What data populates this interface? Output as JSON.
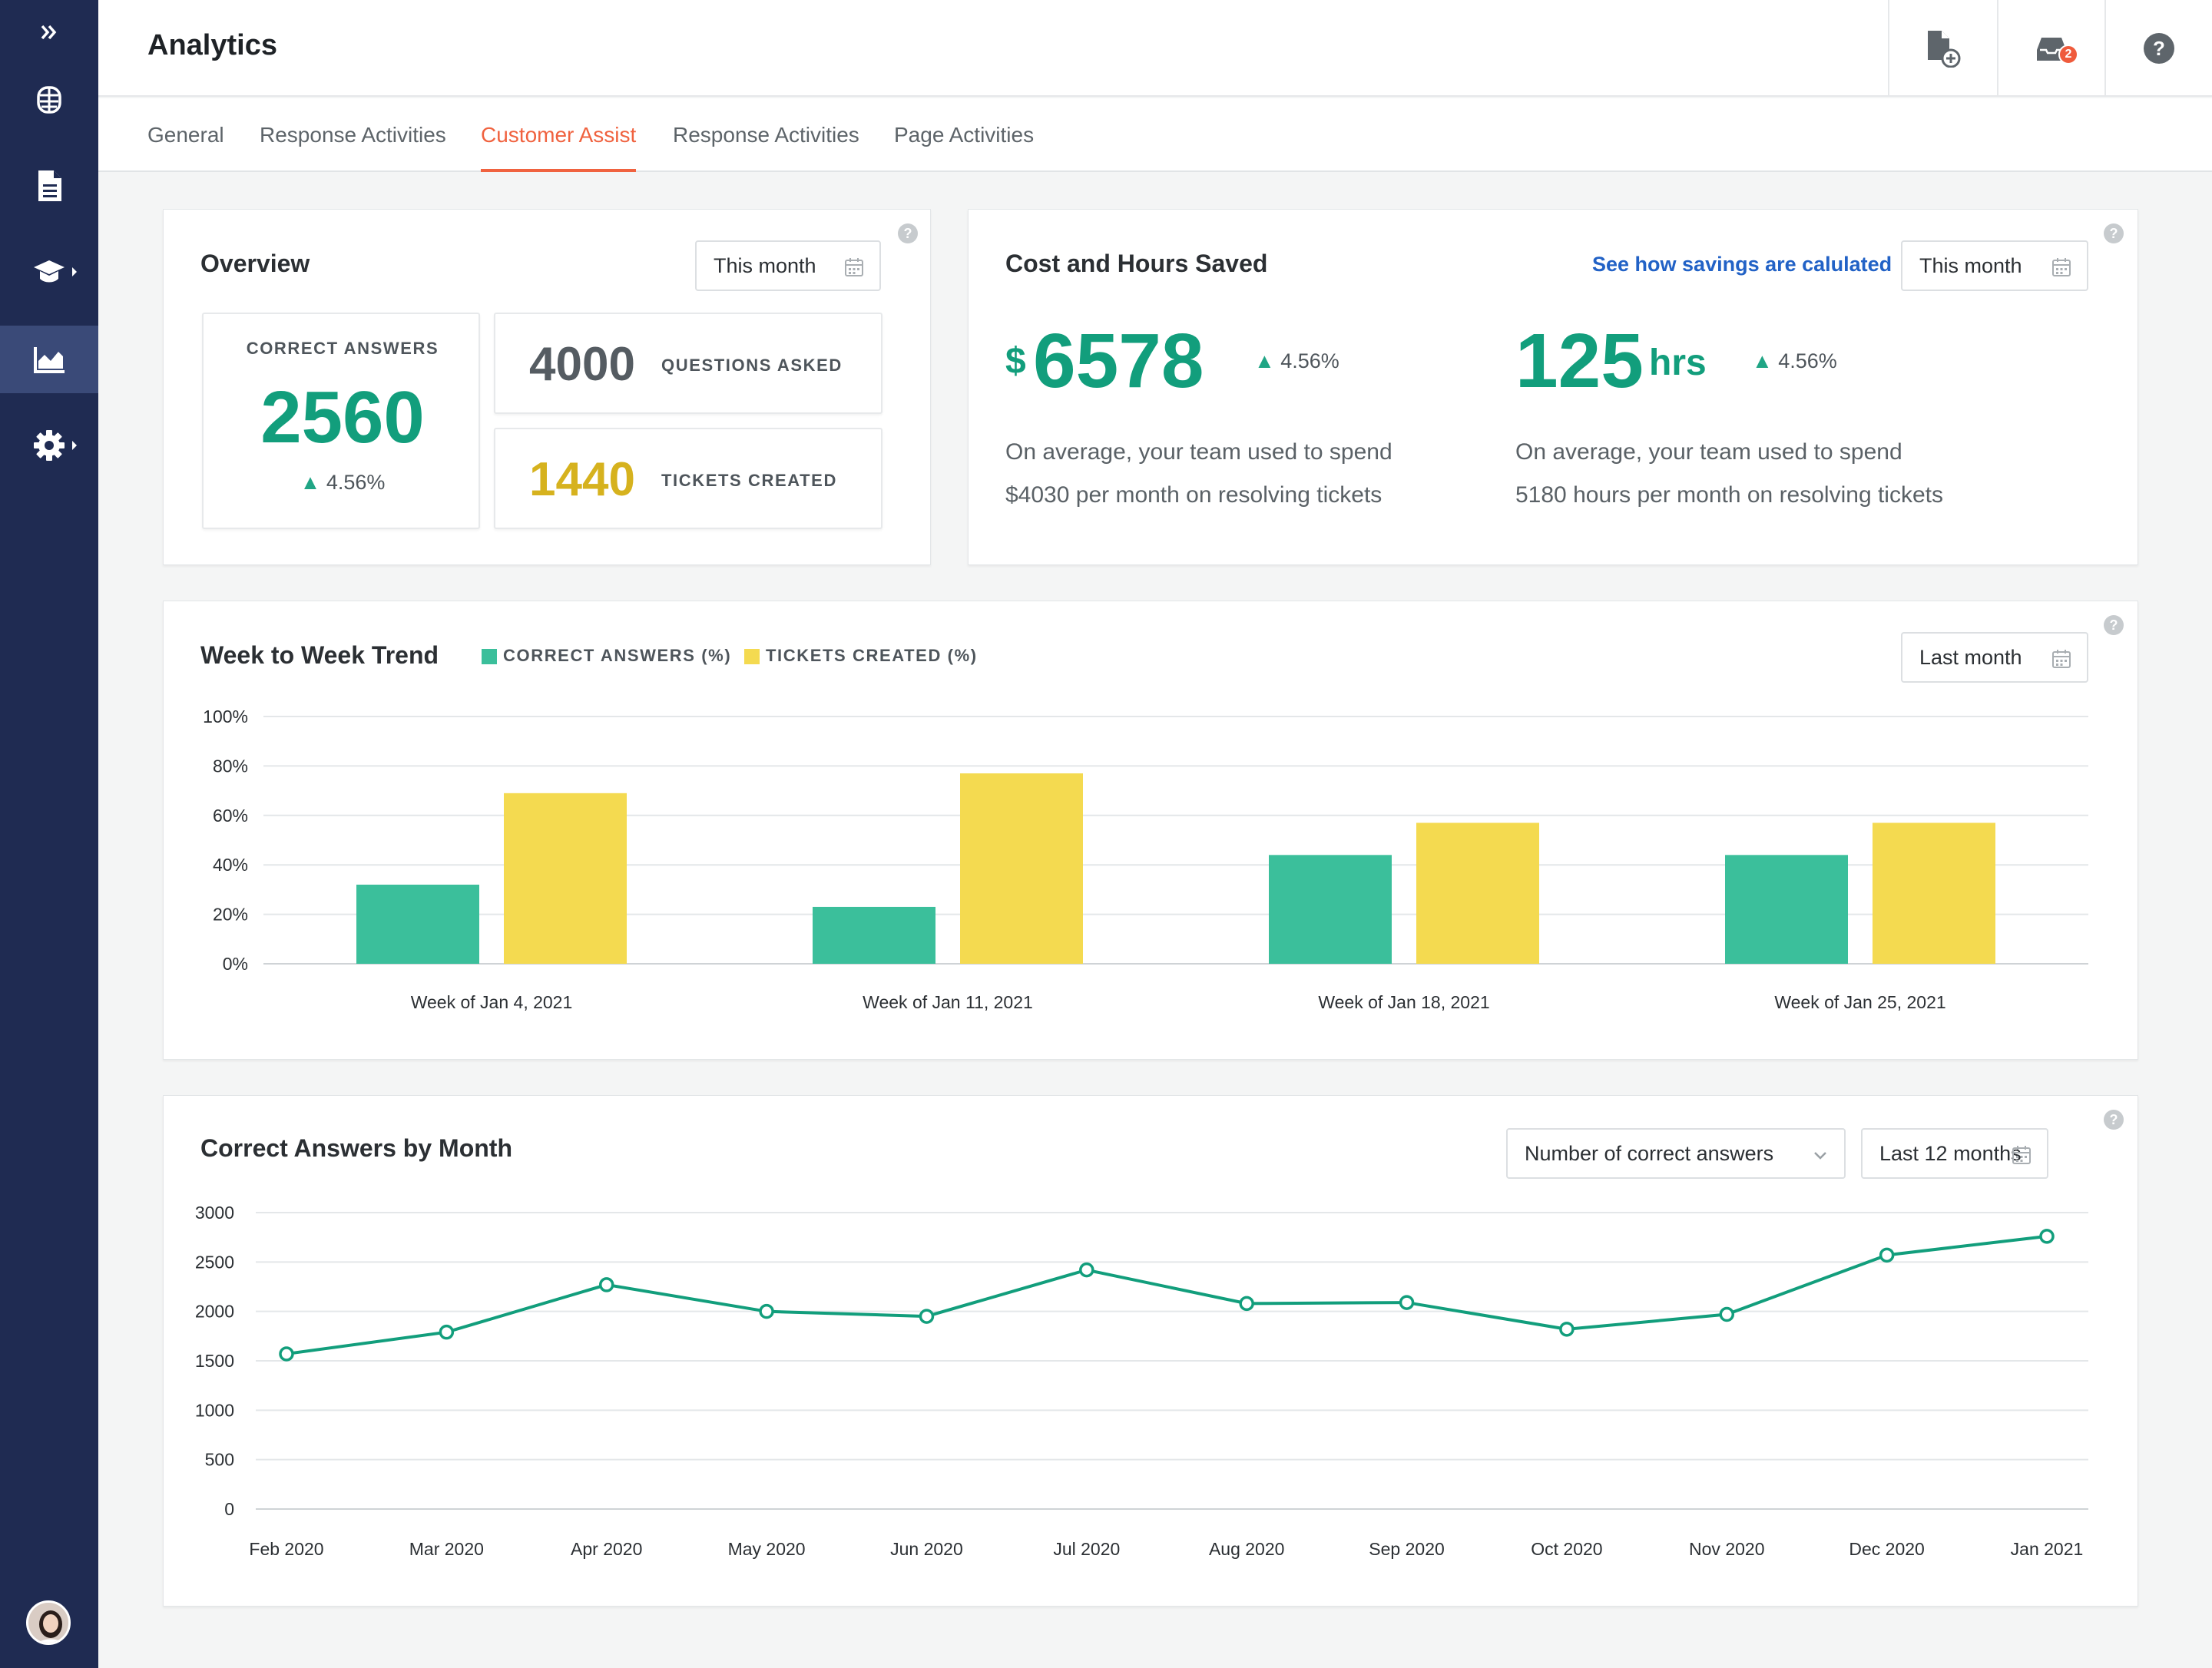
{
  "header": {
    "title": "Analytics",
    "notification_count": "2"
  },
  "tabs": [
    {
      "label": "General"
    },
    {
      "label": "Response Activities"
    },
    {
      "label": "Customer Assist"
    },
    {
      "label": "Response Activities"
    },
    {
      "label": "Page Activities"
    }
  ],
  "active_tab": "Customer Assist",
  "overview": {
    "title": "Overview",
    "period": "This month",
    "correct_answers_label": "CORRECT ANSWERS",
    "correct_answers_value": "2560",
    "correct_answers_change": "4.56%",
    "questions_value": "4000",
    "questions_label": "QUESTIONS ASKED",
    "tickets_value": "1440",
    "tickets_label": "TICKETS CREATED"
  },
  "cost": {
    "title": "Cost and Hours Saved",
    "link": "See how savings are calulated",
    "period": "This month",
    "currency": "$",
    "money_value": "6578",
    "money_change": "4.56%",
    "money_desc_1": "On average, your team used to spend",
    "money_desc_2": "$4030 per month on resolving tickets",
    "hours_value": "125",
    "hours_unit": "hrs",
    "hours_change": "4.56%",
    "hours_desc_1": "On average, your team used to spend",
    "hours_desc_2": "5180 hours per month on resolving tickets"
  },
  "trend": {
    "title": "Week to Week Trend",
    "legend_correct": "CORRECT ANSWERS (%)",
    "legend_tickets": "TICKETS CREATED (%)",
    "period": "Last month"
  },
  "monthly": {
    "title": "Correct Answers by Month",
    "metric": "Number of correct answers",
    "period": "Last 12 months"
  },
  "colors": {
    "green": "#3bbf9b",
    "yellow": "#f4da50",
    "line": "#129e7c",
    "accent": "#f0623f"
  },
  "chart_data": [
    {
      "type": "bar",
      "title": "Week to Week Trend",
      "categories": [
        "Week of Jan 4, 2021",
        "Week of Jan 11, 2021",
        "Week of Jan 18, 2021",
        "Week of Jan 25, 2021"
      ],
      "series": [
        {
          "name": "CORRECT ANSWERS (%)",
          "values": [
            32,
            23,
            44,
            44
          ]
        },
        {
          "name": "TICKETS CREATED (%)",
          "values": [
            69,
            77,
            57,
            57
          ]
        }
      ],
      "yticks": [
        "0%",
        "20%",
        "40%",
        "60%",
        "80%",
        "100%"
      ],
      "ylim": [
        0,
        100
      ]
    },
    {
      "type": "line",
      "title": "Correct Answers by Month",
      "categories": [
        "Feb 2020",
        "Mar 2020",
        "Apr 2020",
        "May 2020",
        "Jun 2020",
        "Jul 2020",
        "Aug 2020",
        "Sep 2020",
        "Oct 2020",
        "Nov 2020",
        "Dec 2020",
        "Jan 2021"
      ],
      "series": [
        {
          "name": "Number of correct answers",
          "values": [
            1570,
            1790,
            2270,
            2000,
            1950,
            2420,
            2080,
            2090,
            1820,
            1970,
            2570,
            2760
          ]
        }
      ],
      "yticks": [
        "0",
        "500",
        "1000",
        "1500",
        "2000",
        "2500",
        "3000"
      ],
      "ylim": [
        0,
        3000
      ]
    }
  ]
}
